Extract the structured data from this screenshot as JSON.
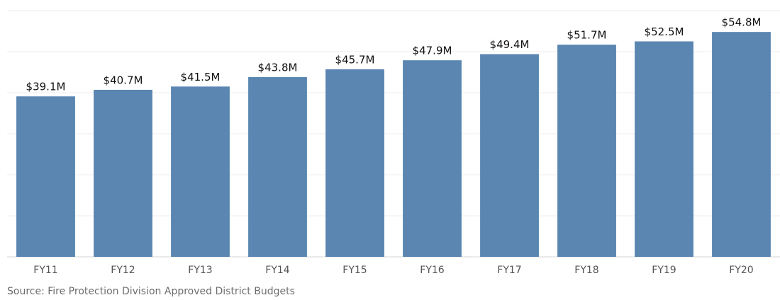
{
  "chart_data": {
    "type": "bar",
    "categories": [
      "FY11",
      "FY12",
      "FY13",
      "FY14",
      "FY15",
      "FY16",
      "FY17",
      "FY18",
      "FY19",
      "FY20"
    ],
    "values": [
      39.1,
      40.7,
      41.5,
      43.8,
      45.7,
      47.9,
      49.4,
      51.7,
      52.5,
      54.8
    ],
    "value_labels": [
      "$39.1M",
      "$40.7M",
      "$41.5M",
      "$43.8M",
      "$45.7M",
      "$47.9M",
      "$49.4M",
      "$51.7M",
      "$52.5M",
      "$54.8M"
    ],
    "color": "#5a86b1",
    "ylim": [
      0,
      60
    ],
    "yticks": [
      0,
      10,
      20,
      30,
      40,
      50,
      60
    ],
    "grid": true,
    "source": "Source: Fire Protection Division Approved District Budgets"
  }
}
